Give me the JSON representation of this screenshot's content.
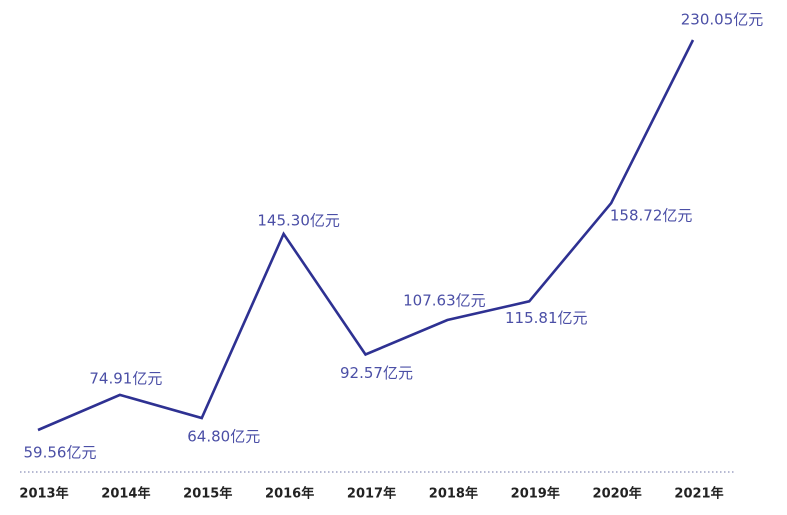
{
  "chart_data": {
    "type": "line",
    "categories": [
      "2013年",
      "2014年",
      "2015年",
      "2016年",
      "2017年",
      "2018年",
      "2019年",
      "2020年",
      "2021年"
    ],
    "values": [
      59.56,
      74.91,
      64.8,
      145.3,
      92.57,
      107.63,
      115.81,
      158.72,
      230.05
    ],
    "value_labels": [
      "59.56亿元",
      "74.91亿元",
      "64.80亿元",
      "145.30亿元",
      "92.57亿元",
      "107.63亿元",
      "115.81亿元",
      "158.72亿元",
      "230.05亿元"
    ],
    "color": "#2e3192",
    "label_color": "#4b4fa6"
  }
}
